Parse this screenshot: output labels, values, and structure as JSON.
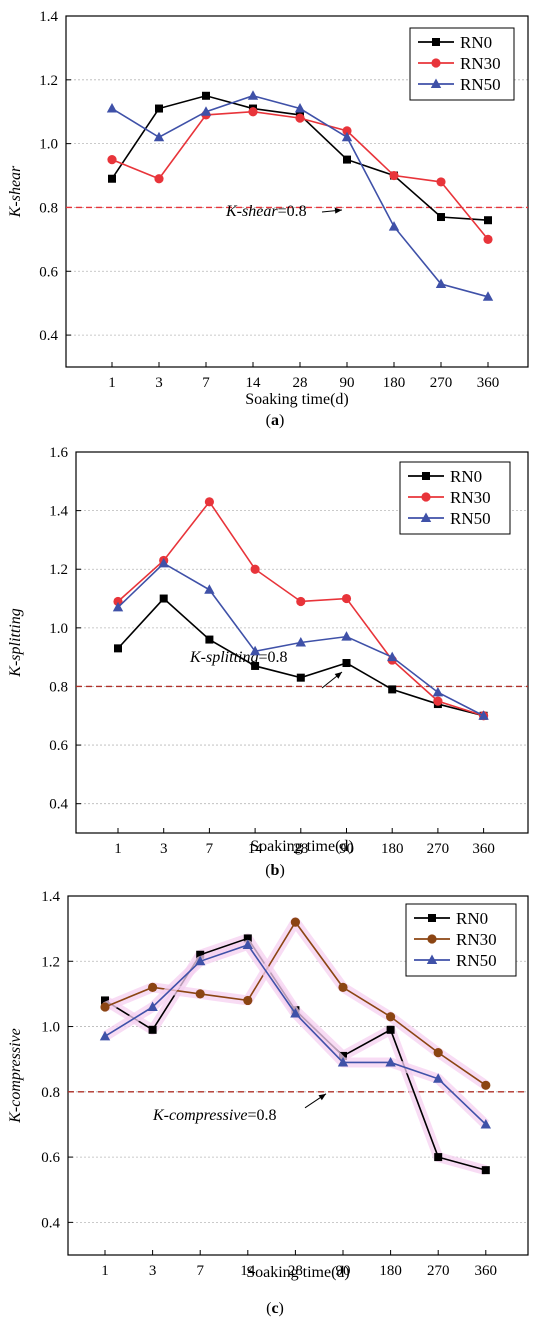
{
  "colors": {
    "RN0": "#000000",
    "RN30": "#e8343a",
    "RN50": "#3f51a8",
    "RN30_c": "#8b4513",
    "ref_line_a": "#e8343a",
    "ref_line_bc": "#b03028",
    "grid": "#b8b8b8",
    "glow": "#f5d0f0"
  },
  "chart_data": [
    {
      "type": "line",
      "caption": "a",
      "xlabel": "Soaking time(d)",
      "ylabel": "K-shear",
      "categories": [
        "1",
        "3",
        "7",
        "14",
        "28",
        "90",
        "180",
        "270",
        "360"
      ],
      "ylim": [
        0.3,
        1.4
      ],
      "yticks": [
        "0.4",
        "0.6",
        "0.8",
        "1.0",
        "1.2",
        "1.4"
      ],
      "grid": true,
      "legend": "top-right",
      "reference_line": {
        "value": 0.8,
        "label_italic": "K-shear",
        "label_rest": "=0.8"
      },
      "series": [
        {
          "name": "RN0",
          "marker": "square",
          "values": [
            0.89,
            1.11,
            1.15,
            1.11,
            1.09,
            0.95,
            0.9,
            0.77,
            0.76
          ]
        },
        {
          "name": "RN30",
          "marker": "circle",
          "values": [
            0.95,
            0.89,
            1.09,
            1.1,
            1.08,
            1.04,
            0.9,
            0.88,
            0.7
          ]
        },
        {
          "name": "RN50",
          "marker": "triangle",
          "values": [
            1.11,
            1.02,
            1.1,
            1.15,
            1.11,
            1.02,
            0.74,
            0.56,
            0.52
          ]
        }
      ]
    },
    {
      "type": "line",
      "caption": "b",
      "xlabel": "Soaking time(d)",
      "ylabel": "K-splitting",
      "categories": [
        "1",
        "3",
        "7",
        "14",
        "28",
        "90",
        "180",
        "270",
        "360"
      ],
      "ylim": [
        0.3,
        1.6
      ],
      "yticks": [
        "0.4",
        "0.6",
        "0.8",
        "1.0",
        "1.2",
        "1.4",
        "1.6"
      ],
      "grid": true,
      "legend": "top-right",
      "reference_line": {
        "value": 0.8,
        "label_italic": "K-splitting",
        "label_rest": "=0.8"
      },
      "series": [
        {
          "name": "RN0",
          "marker": "square",
          "values": [
            0.93,
            1.1,
            0.96,
            0.87,
            0.83,
            0.88,
            0.79,
            0.74,
            0.7
          ]
        },
        {
          "name": "RN30",
          "marker": "circle",
          "values": [
            1.09,
            1.23,
            1.43,
            1.2,
            1.09,
            1.1,
            0.89,
            0.75,
            0.7
          ]
        },
        {
          "name": "RN50",
          "marker": "triangle",
          "values": [
            1.07,
            1.22,
            1.13,
            0.92,
            0.95,
            0.97,
            0.9,
            0.78,
            0.7
          ]
        }
      ]
    },
    {
      "type": "line",
      "caption": "c",
      "xlabel": "Soaking time(d)",
      "ylabel": "K-compressive",
      "categories": [
        "1",
        "3",
        "7",
        "14",
        "28",
        "90",
        "180",
        "270",
        "360"
      ],
      "ylim": [
        0.3,
        1.4
      ],
      "yticks": [
        "0.4",
        "0.6",
        "0.8",
        "1.0",
        "1.2",
        "1.4"
      ],
      "grid": true,
      "legend": "top-right",
      "reference_line": {
        "value": 0.8,
        "label_italic": "K-compressive",
        "label_rest": "=0.8"
      },
      "series": [
        {
          "name": "RN0",
          "marker": "square",
          "values": [
            1.08,
            0.99,
            1.22,
            1.27,
            1.05,
            0.91,
            0.99,
            0.6,
            0.56
          ]
        },
        {
          "name": "RN30",
          "marker": "circle",
          "values": [
            1.06,
            1.12,
            1.1,
            1.08,
            1.32,
            1.12,
            1.03,
            0.92,
            0.82
          ]
        },
        {
          "name": "RN50",
          "marker": "triangle",
          "values": [
            0.97,
            1.06,
            1.2,
            1.25,
            1.04,
            0.89,
            0.89,
            0.84,
            0.7
          ]
        }
      ]
    }
  ]
}
